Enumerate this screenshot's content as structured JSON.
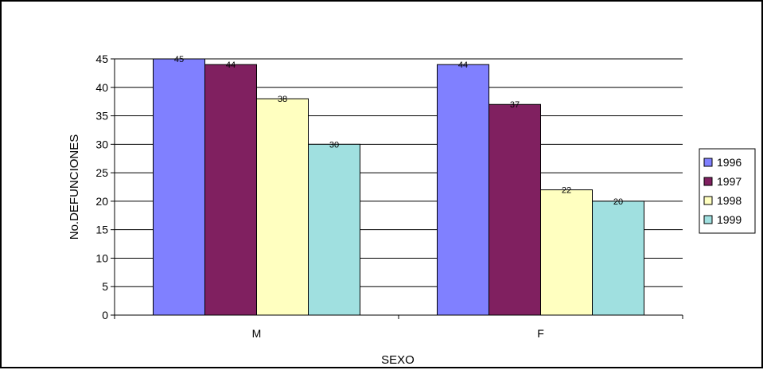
{
  "chart_data": {
    "type": "bar",
    "title": "",
    "xlabel": "SEXO",
    "ylabel": "No.DEFUNCIONES",
    "categories": [
      "M",
      "F"
    ],
    "series": [
      {
        "name": "1996",
        "values": [
          45,
          44
        ],
        "color": "#8080ff"
      },
      {
        "name": "1997",
        "values": [
          44,
          37
        ],
        "color": "#802060"
      },
      {
        "name": "1998",
        "values": [
          38,
          22
        ],
        "color": "#ffffc0"
      },
      {
        "name": "1999",
        "values": [
          30,
          20
        ],
        "color": "#a0e0e0"
      }
    ],
    "ylim": [
      0,
      45
    ],
    "yticks": [
      0,
      5,
      10,
      15,
      20,
      25,
      30,
      35,
      40,
      45
    ],
    "grid": true,
    "legend": "right",
    "data_labels": true
  }
}
